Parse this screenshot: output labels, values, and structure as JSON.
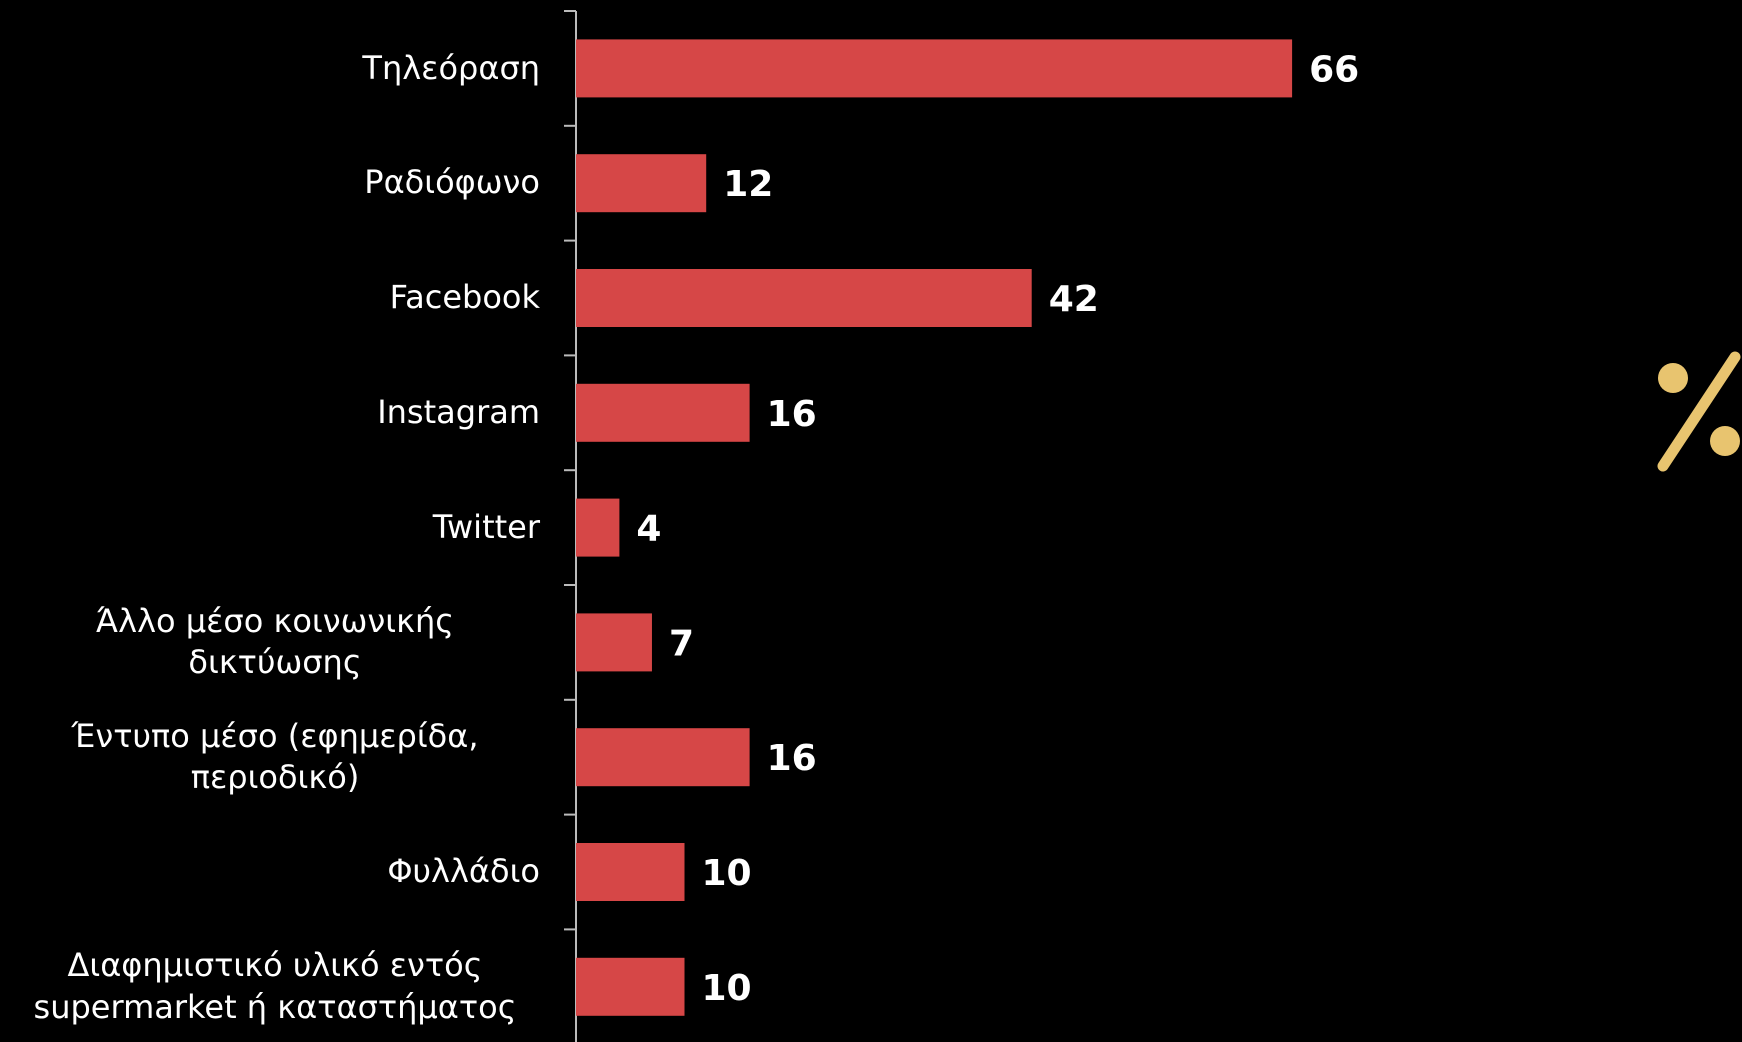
{
  "chart_data": {
    "type": "bar",
    "orientation": "horizontal",
    "categories": [
      "Τηλεόραση",
      "Ραδιόφωνο",
      "Facebook",
      "Instagram",
      "Twitter",
      "Άλλο μέσο κοινωνικής δικτύωσης",
      "Έντυπο μέσο (εφημερίδα, περιοδικό)",
      "Φυλλάδιο",
      "Διαφημιστικό υλικό εντός supermarket ή καταστήματος"
    ],
    "values": [
      66,
      12,
      42,
      16,
      4,
      7,
      16,
      10,
      10
    ],
    "color": "#d64747",
    "xlim": [
      0,
      100
    ]
  }
}
